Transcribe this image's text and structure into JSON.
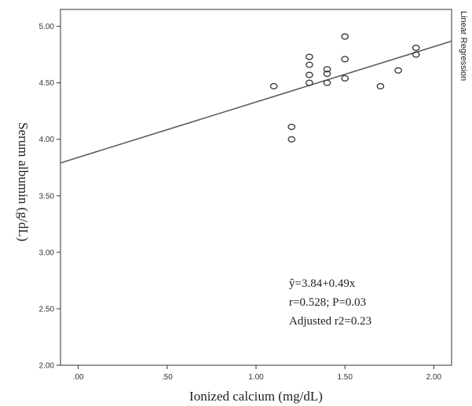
{
  "chart_data": {
    "type": "scatter",
    "title": "",
    "xlabel": "Ionized calcium (mg/dL)",
    "ylabel": "Serum albumin (g/dL)",
    "side_label": "Linear Regression",
    "xlim": [
      -0.1,
      2.1
    ],
    "ylim": [
      2.0,
      5.15
    ],
    "x_ticks": [
      0.0,
      0.5,
      1.0,
      1.5,
      2.0
    ],
    "x_tick_labels": [
      ".00",
      ".50",
      "1.00",
      "1.50",
      "2.00"
    ],
    "y_ticks": [
      2.0,
      2.5,
      3.0,
      3.5,
      4.0,
      4.5,
      5.0
    ],
    "y_tick_labels": [
      "2.00",
      "2.50",
      "3.00",
      "3.50",
      "4.00",
      "4.50",
      "5.00"
    ],
    "grid": false,
    "points": [
      {
        "x": 1.1,
        "y": 4.47
      },
      {
        "x": 1.2,
        "y": 4.11
      },
      {
        "x": 1.2,
        "y": 4.0
      },
      {
        "x": 1.3,
        "y": 4.73
      },
      {
        "x": 1.3,
        "y": 4.66
      },
      {
        "x": 1.3,
        "y": 4.57
      },
      {
        "x": 1.3,
        "y": 4.5
      },
      {
        "x": 1.4,
        "y": 4.62
      },
      {
        "x": 1.4,
        "y": 4.58
      },
      {
        "x": 1.4,
        "y": 4.5
      },
      {
        "x": 1.5,
        "y": 4.91
      },
      {
        "x": 1.5,
        "y": 4.71
      },
      {
        "x": 1.5,
        "y": 4.54
      },
      {
        "x": 1.7,
        "y": 4.47
      },
      {
        "x": 1.8,
        "y": 4.61
      },
      {
        "x": 1.9,
        "y": 4.81
      },
      {
        "x": 1.9,
        "y": 4.75
      }
    ],
    "regression": {
      "intercept": 3.84,
      "slope": 0.49
    },
    "annotations": [
      "ŷ=3.84+0.49x",
      "r=0.528; P=0.03",
      "Adjusted r2=0.23"
    ],
    "colors": {
      "marker": "#333333",
      "line": "#555555",
      "frame": "#333333"
    }
  }
}
